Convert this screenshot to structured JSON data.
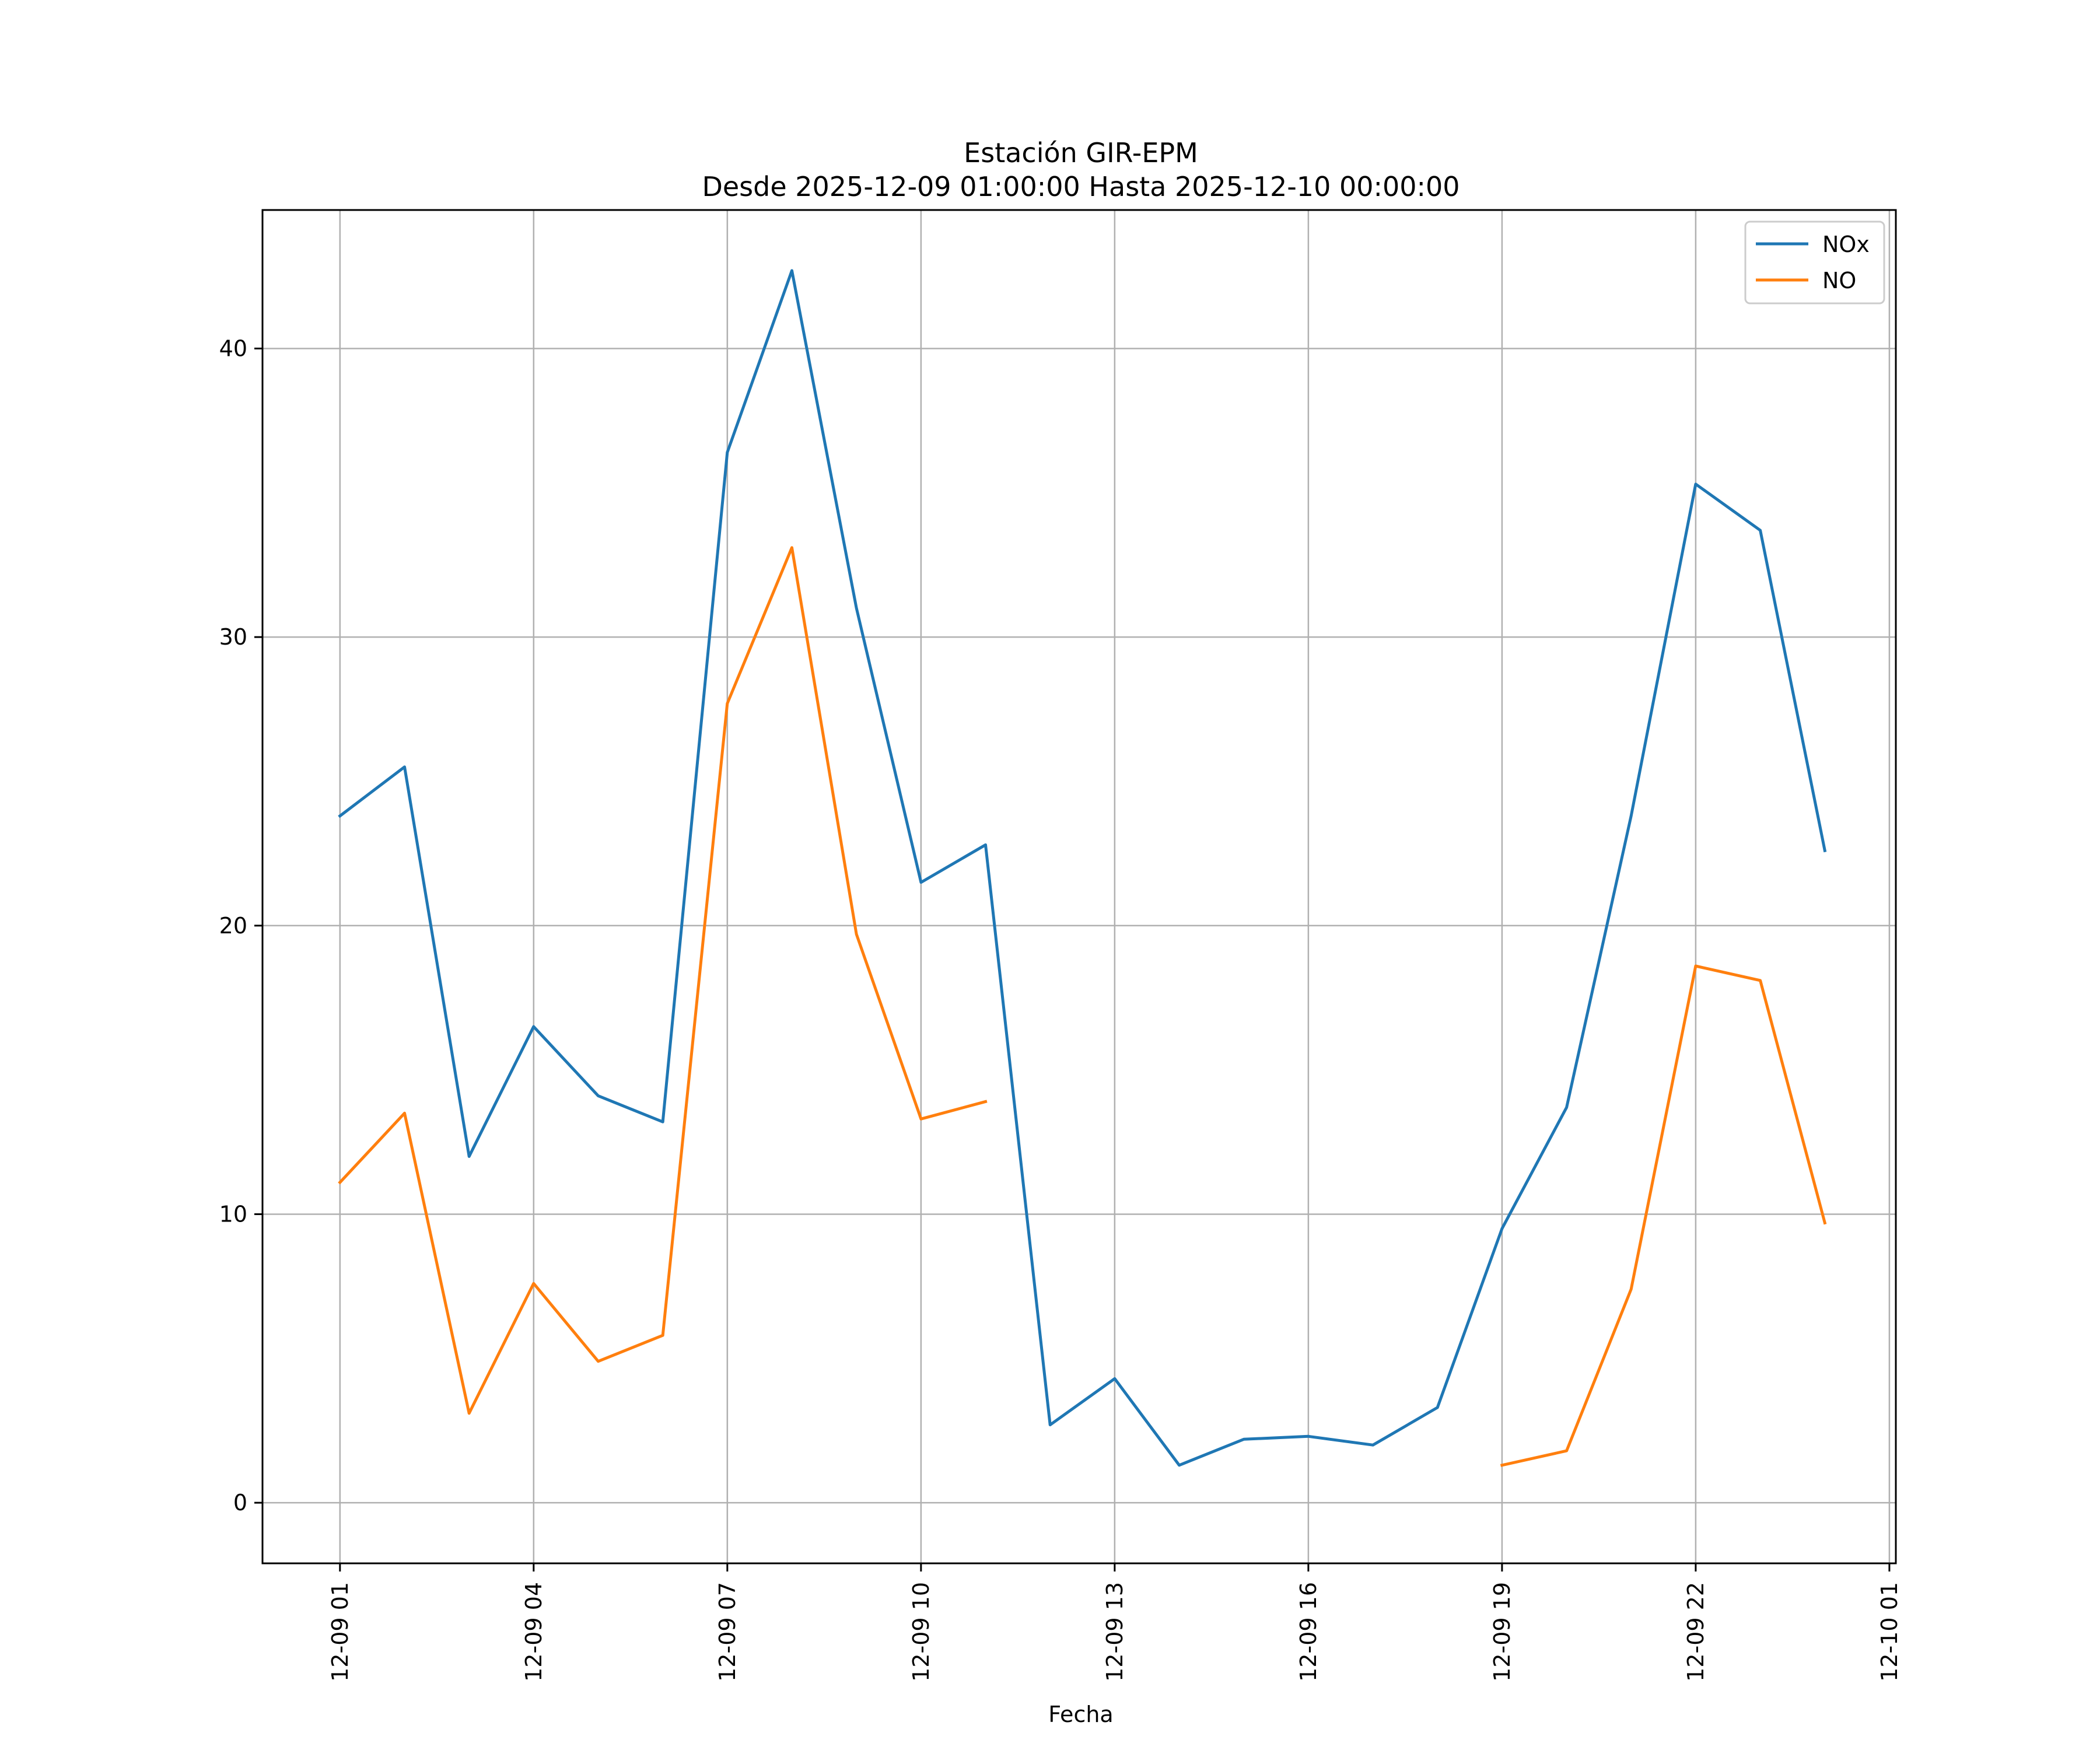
{
  "chart_data": {
    "type": "line",
    "title": "Estación GIR-EPM",
    "subtitle": "Desde 2025-12-09 01:00:00 Hasta 2025-12-10 00:00:00",
    "xlabel": "Fecha",
    "ylabel": "",
    "x": [
      "12-09 01",
      "12-09 02",
      "12-09 03",
      "12-09 04",
      "12-09 05",
      "12-09 06",
      "12-09 07",
      "12-09 08",
      "12-09 09",
      "12-09 10",
      "12-09 11",
      "12-09 12",
      "12-09 13",
      "12-09 14",
      "12-09 15",
      "12-09 16",
      "12-09 17",
      "12-09 18",
      "12-09 19",
      "12-09 20",
      "12-09 21",
      "12-09 22",
      "12-09 23",
      "12-10 00"
    ],
    "x_hour_offsets": [
      0,
      1,
      2,
      3,
      4,
      5,
      6,
      7,
      8,
      9,
      10,
      11,
      12,
      13,
      14,
      15,
      16,
      17,
      18,
      19,
      20,
      21,
      22,
      23
    ],
    "xticks": [
      "12-09 01",
      "12-09 04",
      "12-09 07",
      "12-09 10",
      "12-09 13",
      "12-09 16",
      "12-09 19",
      "12-09 22",
      "12-10 01"
    ],
    "xtick_hour_offsets": [
      0,
      3,
      6,
      9,
      12,
      15,
      18,
      21,
      24
    ],
    "xlim": [
      -1.2,
      24.1
    ],
    "ylim": [
      -2.1,
      44.8
    ],
    "yticks": [
      0,
      10,
      20,
      30,
      40
    ],
    "grid": true,
    "legend_position": "top-right",
    "series": [
      {
        "name": "NOx",
        "color": "#1f77b4",
        "values": [
          23.8,
          25.5,
          12.0,
          16.5,
          14.1,
          13.2,
          36.4,
          42.7,
          31.0,
          21.5,
          22.8,
          2.7,
          4.3,
          1.3,
          2.2,
          2.3,
          2.0,
          3.3,
          9.5,
          13.7,
          23.8,
          35.3,
          33.7,
          22.6
        ]
      },
      {
        "name": "NO",
        "color": "#ff7f0e",
        "values": [
          11.1,
          13.5,
          3.1,
          7.6,
          4.9,
          5.8,
          27.7,
          33.1,
          19.7,
          13.3,
          13.9,
          null,
          null,
          null,
          null,
          null,
          null,
          null,
          1.3,
          1.8,
          7.4,
          18.6,
          18.1,
          9.7
        ]
      }
    ]
  }
}
